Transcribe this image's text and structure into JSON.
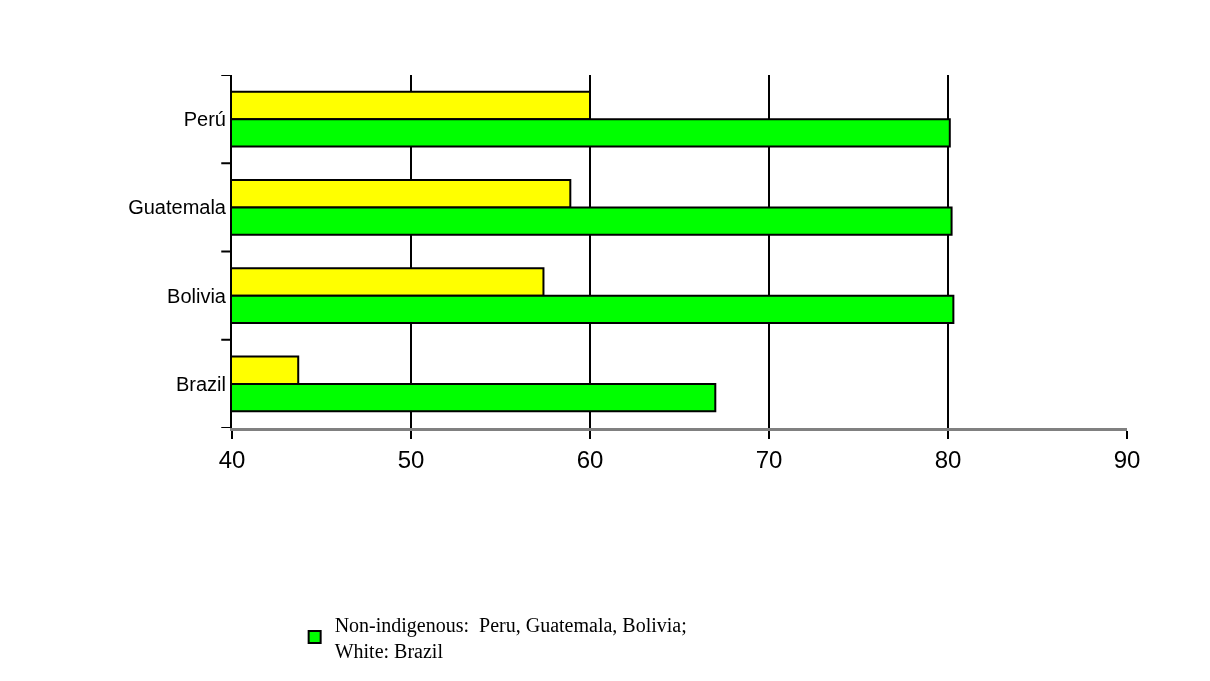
{
  "chart_data": {
    "type": "bar",
    "orientation": "horizontal",
    "categories": [
      "Perú",
      "Guatemala",
      "Bolivia",
      "Brazil"
    ],
    "series": [
      {
        "color": "#ffff00",
        "values": [
          60.0,
          58.9,
          57.4,
          43.7
        ]
      },
      {
        "name": "Non-indigenous:  Peru, Guatemala, Bolivia;\nWhite: Brazil",
        "color": "#00ff00",
        "values": [
          80.1,
          80.2,
          80.3,
          67.0
        ]
      }
    ],
    "xlim": [
      40,
      90
    ],
    "xticks": [
      40,
      50,
      60,
      70,
      80,
      90
    ],
    "grid": "x",
    "legend": "bottom"
  }
}
